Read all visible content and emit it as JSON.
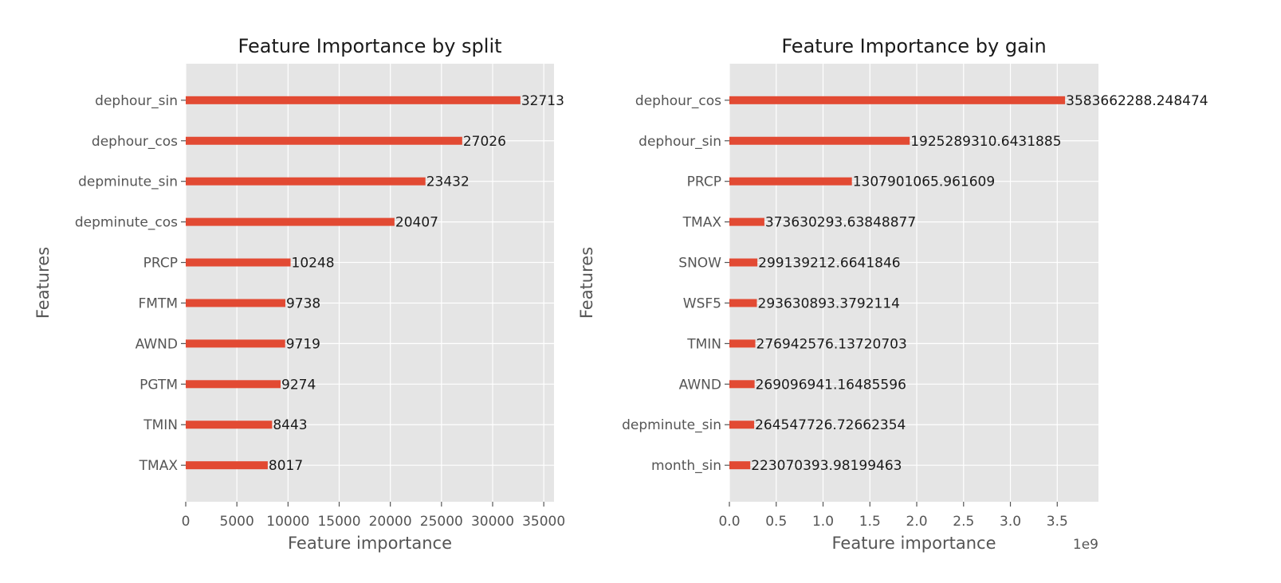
{
  "chart_data": [
    {
      "type": "bar",
      "orientation": "horizontal",
      "title": "Feature Importance by split",
      "xlabel": "Feature importance",
      "ylabel": "Features",
      "xlim": [
        0,
        36000
      ],
      "x_ticks": [
        0,
        5000,
        10000,
        15000,
        20000,
        25000,
        30000,
        35000
      ],
      "x_tick_labels": [
        "0",
        "5000",
        "10000",
        "15000",
        "20000",
        "25000",
        "30000",
        "35000"
      ],
      "x_offset_label": "",
      "grid": true,
      "legend": "none",
      "bar_color": "#e24a33",
      "background_color": "#e5e5e5",
      "categories": [
        "dephour_sin",
        "dephour_cos",
        "depminute_sin",
        "depminute_cos",
        "PRCP",
        "FMTM",
        "AWND",
        "PGTM",
        "TMIN",
        "TMAX"
      ],
      "values": [
        32713,
        27026,
        23432,
        20407,
        10248,
        9738,
        9719,
        9274,
        8443,
        8017
      ],
      "value_labels": [
        "32713",
        "27026",
        "23432",
        "20407",
        "10248",
        "9738",
        "9719",
        "9274",
        "8443",
        "8017"
      ]
    },
    {
      "type": "bar",
      "orientation": "horizontal",
      "title": "Feature Importance by gain",
      "xlabel": "Feature importance",
      "ylabel": "Features",
      "xlim": [
        0,
        3940000000
      ],
      "x_ticks": [
        0,
        500000000,
        1000000000,
        1500000000,
        2000000000,
        2500000000,
        3000000000,
        3500000000
      ],
      "x_tick_labels": [
        "0.0",
        "0.5",
        "1.0",
        "1.5",
        "2.0",
        "2.5",
        "3.0",
        "3.5"
      ],
      "x_offset_label": "1e9",
      "grid": true,
      "legend": "none",
      "bar_color": "#e24a33",
      "background_color": "#e5e5e5",
      "categories": [
        "dephour_cos",
        "dephour_sin",
        "PRCP",
        "TMAX",
        "SNOW",
        "WSF5",
        "TMIN",
        "AWND",
        "depminute_sin",
        "month_sin"
      ],
      "values": [
        3583662288.248474,
        1925289310.6431885,
        1307901065.961609,
        373630293.63848877,
        299139212.6641846,
        293630893.3792114,
        276942576.13720703,
        269096941.16485596,
        264547726.72662354,
        223070393.98199463
      ],
      "value_labels": [
        "3583662288.248474",
        "1925289310.6431885",
        "1307901065.961609",
        "373630293.63848877",
        "299139212.6641846",
        "293630893.3792114",
        "276942576.13720703",
        "269096941.16485596",
        "264547726.72662354",
        "223070393.98199463"
      ]
    }
  ]
}
